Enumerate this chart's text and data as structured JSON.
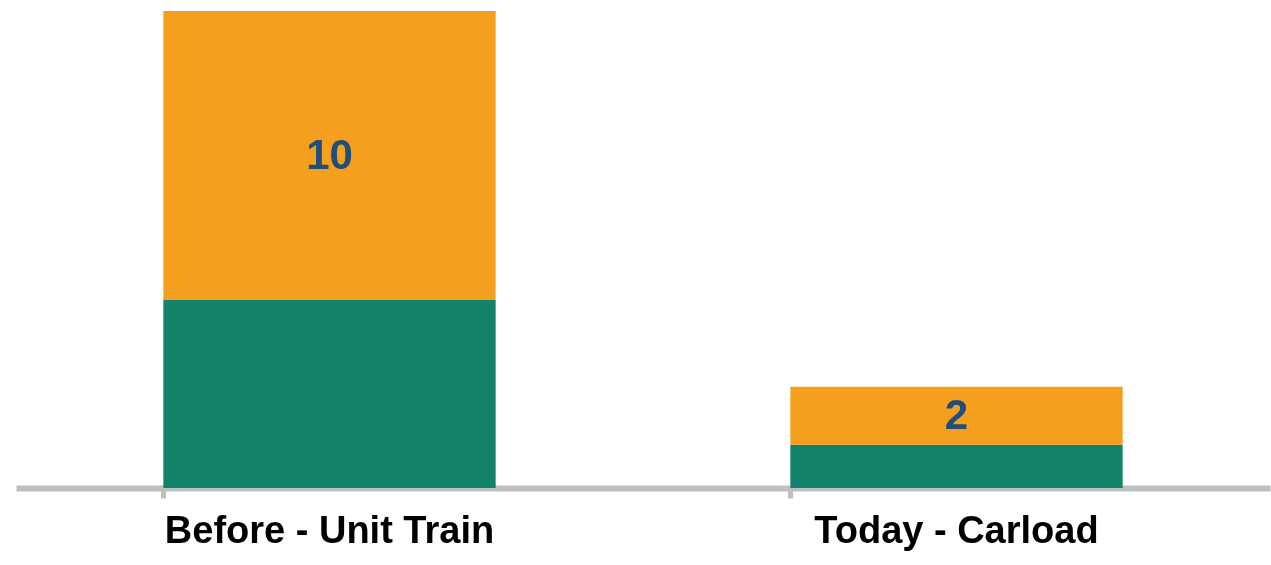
{
  "chart_data": {
    "type": "bar",
    "stacked": true,
    "categories": [
      "Before - Unit Train",
      "Today - Carload"
    ],
    "series": [
      {
        "color": "#12836a",
        "values": [
          6.5,
          1.5
        ]
      },
      {
        "color": "#f59f1f",
        "values": [
          10,
          2
        ],
        "value_labels": [
          "10",
          "2"
        ]
      }
    ],
    "ylim": [
      0,
      16.5
    ],
    "tick_labels": "x"
  }
}
